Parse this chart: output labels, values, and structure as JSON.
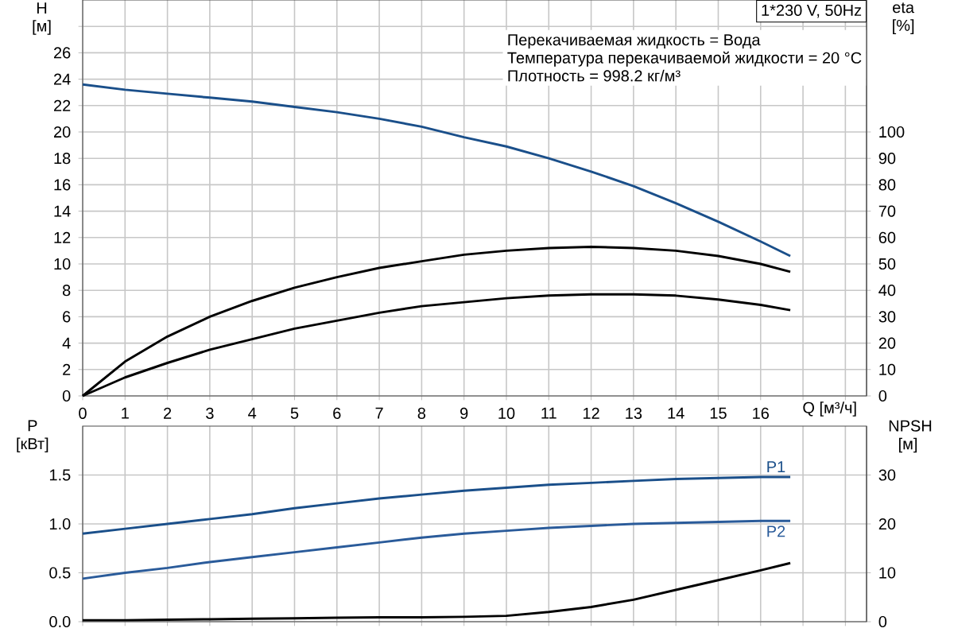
{
  "chart_data": [
    {
      "type": "line",
      "title": "1*230 V, 50Hz",
      "ylabel": "H [м]",
      "y2label": "eta [%]",
      "xlabel": "Q [м³/ч]",
      "annotations": [
        "Перекачиваемая жидкость = Вода",
        "Температура перекачиваемой жидкости = 20 °C",
        "Плотность = 998.2 кг/м³"
      ],
      "x": [
        0,
        1,
        2,
        3,
        4,
        5,
        6,
        7,
        8,
        9,
        10,
        11,
        12,
        13,
        14,
        15,
        16,
        16.7
      ],
      "series": [
        {
          "color": "#1a4f8a",
          "values": [
            23.6,
            23.2,
            22.9,
            22.6,
            22.3,
            21.9,
            21.5,
            21.0,
            20.4,
            19.6,
            18.9,
            18.0,
            17.0,
            15.9,
            14.6,
            13.2,
            11.7,
            10.6
          ]
        },
        {
          "color": "#000000",
          "axis": "y2",
          "values": [
            0,
            13,
            22.5,
            30,
            36,
            41,
            45,
            48.5,
            51,
            53.5,
            55,
            56,
            56.5,
            56,
            55,
            53,
            50,
            47
          ]
        },
        {
          "color": "#000000",
          "axis": "y2",
          "values": [
            0,
            7,
            12.5,
            17.5,
            21.5,
            25.5,
            28.5,
            31.5,
            34,
            35.5,
            37,
            38,
            38.5,
            38.5,
            38,
            36.5,
            34.5,
            32.5
          ]
        }
      ],
      "xlim": [
        0,
        18.5
      ],
      "xticks": [
        0,
        1,
        2,
        3,
        4,
        5,
        6,
        7,
        8,
        9,
        10,
        11,
        12,
        13,
        14,
        15,
        16,
        {
          "value": 17,
          "label": null
        },
        {
          "value": 18,
          "label": null
        }
      ],
      "ylim": [
        0,
        30
      ],
      "yticks": [
        0,
        2,
        4,
        6,
        8,
        10,
        12,
        14,
        16,
        18,
        20,
        22,
        24,
        26,
        {
          "value": 28,
          "label": null
        }
      ],
      "y2lim": [
        0,
        150
      ],
      "y2ticks": [
        0,
        10,
        20,
        30,
        40,
        50,
        60,
        70,
        80,
        90,
        100
      ],
      "grid": true
    },
    {
      "type": "line",
      "ylabel": "P [кВт]",
      "y2label": "NPSH [м]",
      "x": [
        0,
        1,
        2,
        3,
        4,
        5,
        6,
        7,
        8,
        9,
        10,
        11,
        12,
        13,
        14,
        15,
        16,
        16.7
      ],
      "series": [
        {
          "name": "P1",
          "color": "#1a4f8a",
          "values": [
            0.9,
            0.95,
            1.0,
            1.05,
            1.1,
            1.16,
            1.21,
            1.26,
            1.3,
            1.34,
            1.37,
            1.4,
            1.42,
            1.44,
            1.46,
            1.47,
            1.48,
            1.48
          ]
        },
        {
          "name": "P2",
          "color": "#2a5b9a",
          "values": [
            0.44,
            0.5,
            0.55,
            0.61,
            0.66,
            0.71,
            0.76,
            0.81,
            0.86,
            0.9,
            0.93,
            0.96,
            0.98,
            1.0,
            1.01,
            1.02,
            1.03,
            1.03
          ]
        },
        {
          "color": "#000000",
          "axis": "y2",
          "values": [
            0.3,
            0.3,
            0.4,
            0.5,
            0.6,
            0.7,
            0.8,
            0.9,
            0.9,
            1.0,
            1.2,
            2.0,
            3.0,
            4.5,
            6.5,
            8.5,
            10.5,
            12
          ]
        }
      ],
      "xlim": [
        0,
        18.5
      ],
      "xticks": [
        0,
        1,
        2,
        3,
        4,
        5,
        6,
        7,
        8,
        9,
        10,
        11,
        12,
        13,
        14,
        15,
        16,
        17,
        18
      ],
      "ylim": [
        0,
        2
      ],
      "yticks": [
        {
          "value": 0,
          "label": "0.0"
        },
        0.5,
        {
          "value": 1,
          "label": "1.0"
        },
        1.5
      ],
      "y2lim": [
        0,
        40
      ],
      "y2ticks": [
        0,
        10,
        20,
        30
      ],
      "tick_labels": "y",
      "grid": true
    }
  ]
}
